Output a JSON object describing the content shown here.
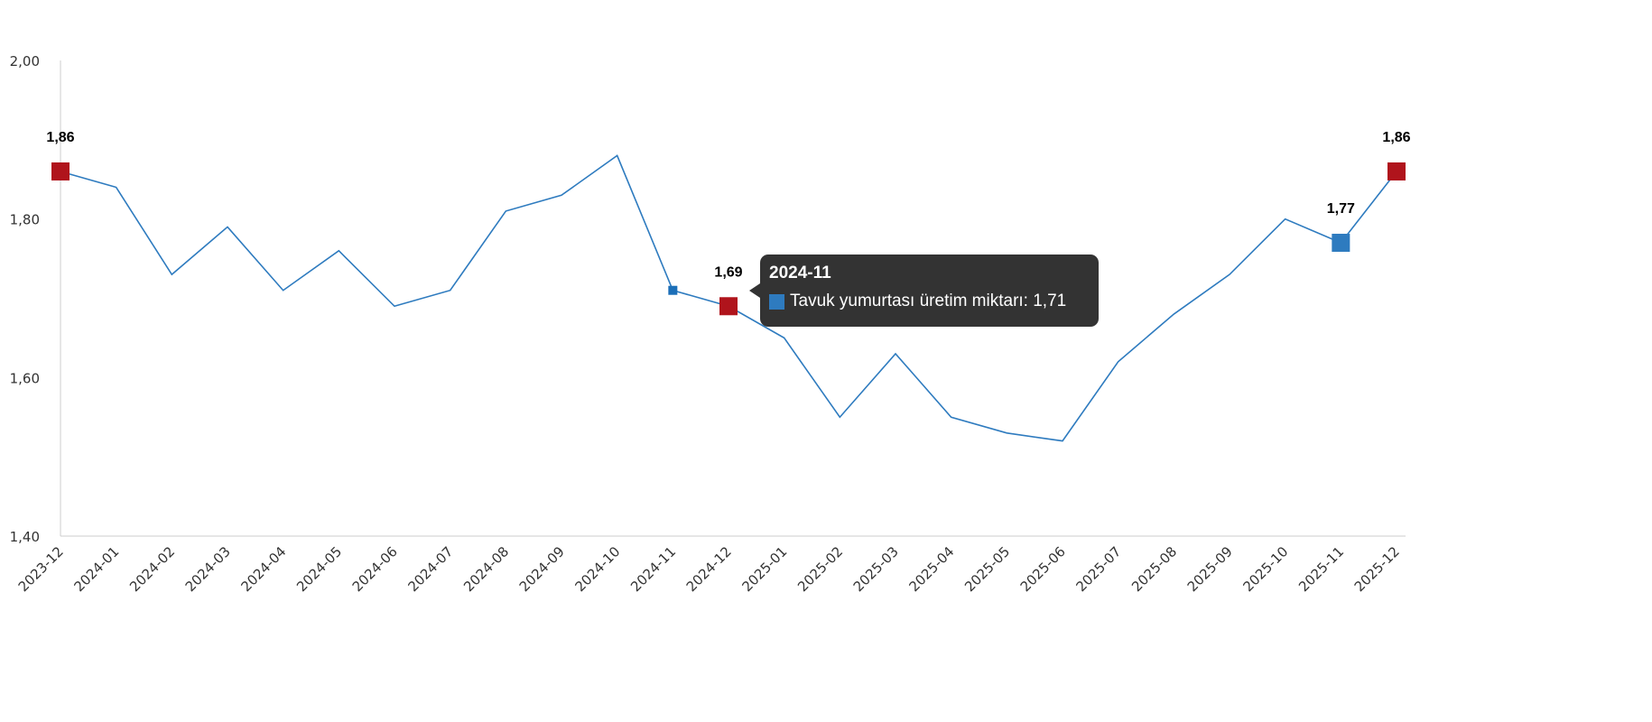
{
  "chart_data": {
    "type": "line",
    "title": "",
    "xlabel": "",
    "ylabel": "",
    "ylim": [
      1.4,
      2.0
    ],
    "yticks": [
      "1,40",
      "1,60",
      "1,80",
      "2,00"
    ],
    "grid": false,
    "categories": [
      "2023-12",
      "2024-01",
      "2024-02",
      "2024-03",
      "2024-04",
      "2024-05",
      "2024-06",
      "2024-07",
      "2024-08",
      "2024-09",
      "2024-10",
      "2024-11",
      "2024-12",
      "2025-01",
      "2025-02",
      "2025-03",
      "2025-04",
      "2025-05",
      "2025-06",
      "2025-07",
      "2025-08",
      "2025-09",
      "2025-10",
      "2025-11",
      "2025-12"
    ],
    "series": [
      {
        "name": "Tavuk yumurtası üretim miktarı",
        "color": "#2e7bbf",
        "values": [
          1.86,
          1.84,
          1.73,
          1.79,
          1.71,
          1.76,
          1.69,
          1.71,
          1.81,
          1.83,
          1.88,
          1.71,
          1.69,
          1.65,
          1.55,
          1.63,
          1.55,
          1.53,
          1.52,
          1.62,
          1.68,
          1.73,
          1.8,
          1.77,
          1.86
        ]
      }
    ],
    "highlighted_points": [
      {
        "index": 0,
        "label": "1,86",
        "color": "#b0141c"
      },
      {
        "index": 12,
        "label": "1,69",
        "color": "#b0141c"
      },
      {
        "index": 23,
        "label": "1,77",
        "color": "#2e7bbf"
      },
      {
        "index": 24,
        "label": "1,86",
        "color": "#b0141c"
      }
    ],
    "hover_index": 11
  },
  "tooltip": {
    "title": "2024-11",
    "series_label": "Tavuk yumurtası üretim miktarı: 1,71"
  }
}
